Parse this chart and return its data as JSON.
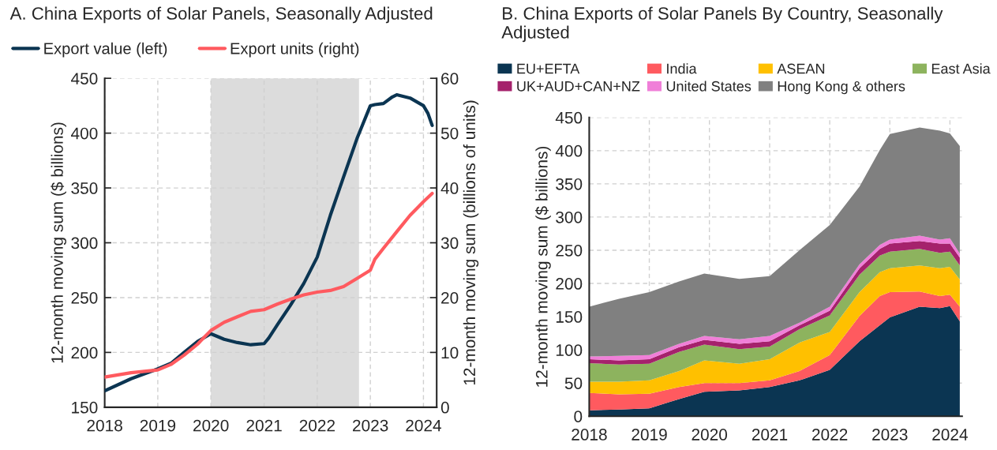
{
  "chart_data": [
    {
      "type": "line",
      "title": "A. China Exports of Solar Panels, Seasonally Adjusted",
      "ylabel": "12-month moving sum ($ billions)",
      "y2label": "12-month moving sum (billions of units)",
      "xlim": [
        "2018-01-01",
        "2024-04-01"
      ],
      "xticks": [
        "2018",
        "2019",
        "2020",
        "2021",
        "2022",
        "2023",
        "2024"
      ],
      "ylim": [
        150,
        450
      ],
      "yticks": [
        150,
        200,
        250,
        300,
        350,
        400,
        450
      ],
      "y2lim": [
        0,
        60
      ],
      "y2ticks": [
        0,
        10,
        20,
        30,
        40,
        50,
        60
      ],
      "grid": true,
      "legend": "top",
      "bands": [
        {
          "axis": "x",
          "from": "2020-01-01",
          "to": "2022-10-15",
          "color": "#dcdcdc"
        }
      ],
      "series": [
        {
          "name": "Export value (left)",
          "color": "#0b3552",
          "x": [
            "2018-01",
            "2018-07",
            "2019-01",
            "2019-04",
            "2019-07",
            "2019-10",
            "2020-01",
            "2020-04",
            "2020-07",
            "2020-10",
            "2021-01",
            "2021-02",
            "2021-04",
            "2021-07",
            "2021-10",
            "2022-01",
            "2022-04",
            "2022-07",
            "2022-10",
            "2023-01",
            "2023-02",
            "2023-04",
            "2023-06",
            "2023-07",
            "2023-10",
            "2024-01",
            "2024-02",
            "2024-03"
          ],
          "values": [
            165,
            176,
            185,
            190,
            200,
            210,
            217,
            212,
            209,
            207,
            208,
            213,
            225,
            243,
            263,
            287,
            325,
            360,
            395,
            425,
            426,
            427,
            433,
            435,
            432,
            425,
            418,
            407
          ]
        },
        {
          "name": "Export units (right)",
          "color": "#ff5a5f",
          "axis": "y2",
          "x": [
            "2018-01",
            "2018-07",
            "2019-01",
            "2019-04",
            "2019-07",
            "2019-10",
            "2020-01",
            "2020-04",
            "2020-07",
            "2020-10",
            "2021-01",
            "2021-04",
            "2021-07",
            "2021-10",
            "2022-01",
            "2022-04",
            "2022-07",
            "2022-10",
            "2023-01",
            "2023-02",
            "2023-04",
            "2023-07",
            "2023-10",
            "2024-01",
            "2024-03"
          ],
          "values": [
            5.5,
            6.3,
            6.8,
            7.8,
            9.5,
            11.5,
            14,
            15.5,
            16.5,
            17.5,
            17.8,
            18.8,
            19.7,
            20.5,
            21,
            21.3,
            22,
            23.5,
            25,
            27,
            29,
            32,
            35,
            37.5,
            39
          ]
        }
      ]
    },
    {
      "type": "area",
      "stacked": true,
      "title": "B. China Exports of Solar Panels By Country, Seasonally Adjusted",
      "ylabel": "12-month moving sum ($ billions)",
      "xlim": [
        "2018-01-01",
        "2024-03-15"
      ],
      "xticks": [
        "2018",
        "2019",
        "2020",
        "2021",
        "2022",
        "2023",
        "2024"
      ],
      "ylim": [
        0,
        450
      ],
      "yticks": [
        0,
        50,
        100,
        150,
        200,
        250,
        300,
        350,
        400,
        450
      ],
      "grid": true,
      "legend": "top",
      "x": [
        "2018-01",
        "2018-07",
        "2019-01",
        "2019-07",
        "2019-12",
        "2020-07",
        "2021-01",
        "2021-07",
        "2022-01",
        "2022-07",
        "2022-11",
        "2023-01",
        "2023-07",
        "2023-11",
        "2024-01",
        "2024-03"
      ],
      "series": [
        {
          "name": "EU+EFTA",
          "color": "#0b3552",
          "values": [
            9,
            10,
            12,
            26,
            37,
            39,
            44,
            54,
            70,
            113,
            137,
            149,
            165,
            163,
            166,
            143
          ]
        },
        {
          "name": "India",
          "color": "#ff5a5f",
          "values": [
            26,
            23,
            22,
            18,
            13,
            11,
            10,
            14,
            22,
            38,
            44,
            38,
            23,
            18,
            17,
            22
          ]
        },
        {
          "name": "ASEAN",
          "color": "#ffc000",
          "values": [
            17,
            19,
            20,
            24,
            34,
            29,
            32,
            43,
            35,
            36,
            36,
            36,
            39,
            42,
            42,
            41
          ]
        },
        {
          "name": "East Asia",
          "color": "#8db35e",
          "values": [
            28,
            26,
            25,
            29,
            24,
            22,
            19,
            20,
            25,
            26,
            25,
            25,
            25,
            23,
            23,
            21
          ]
        },
        {
          "name": "UK+AUD+CAN+NZ",
          "color": "#a5226c",
          "values": [
            6,
            6,
            7,
            7,
            7,
            8,
            8,
            6,
            7,
            10,
            10,
            12,
            12,
            14,
            12,
            12
          ]
        },
        {
          "name": "United States",
          "color": "#f07fd8",
          "values": [
            4,
            7,
            6,
            5,
            6,
            7,
            8,
            4,
            6,
            6,
            6,
            6,
            8,
            6,
            8,
            6
          ]
        },
        {
          "name": "Hong Kong & others",
          "color": "#808080",
          "values": [
            75,
            86,
            95,
            94,
            94,
            91,
            90,
            109,
            123,
            117,
            143,
            159,
            163,
            164,
            158,
            162
          ]
        }
      ]
    }
  ]
}
